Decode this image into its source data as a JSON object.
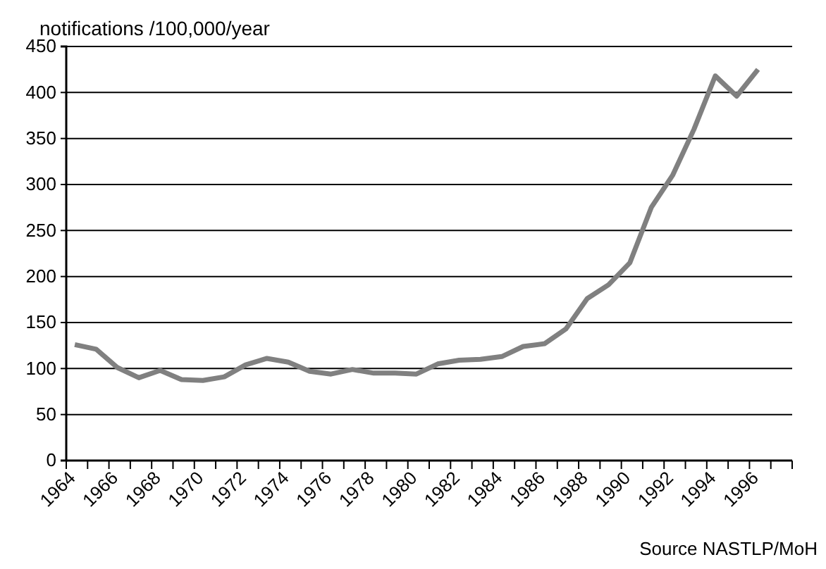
{
  "chart_data": {
    "type": "line",
    "ylabel": "notifications /100,000/year",
    "categories": [
      "1964",
      null,
      "1966",
      null,
      "1968",
      null,
      "1970",
      null,
      "1972",
      null,
      "1974",
      null,
      "1976",
      null,
      "1978",
      null,
      "1980",
      null,
      "1982",
      null,
      "1984",
      null,
      "1986",
      null,
      "1988",
      null,
      "1990",
      null,
      "1992",
      null,
      "1994",
      null,
      "1996",
      null
    ],
    "series": [
      {
        "color": "#808080",
        "values": [
          126,
          121,
          101,
          90,
          98,
          88,
          87,
          91,
          104,
          111,
          107,
          97,
          94,
          99,
          95,
          95,
          94,
          105,
          109,
          110,
          113,
          124,
          127,
          143,
          176,
          191,
          215,
          275,
          310,
          360,
          418,
          396,
          425,
          null
        ]
      }
    ],
    "ylim": [
      0,
      450
    ],
    "yticks": [
      0,
      50,
      100,
      150,
      200,
      250,
      300,
      350,
      400,
      450
    ],
    "grid": "y",
    "marker": "none",
    "line_style": "solid",
    "annotations": [
      "Source NASTLP/MoH"
    ]
  }
}
